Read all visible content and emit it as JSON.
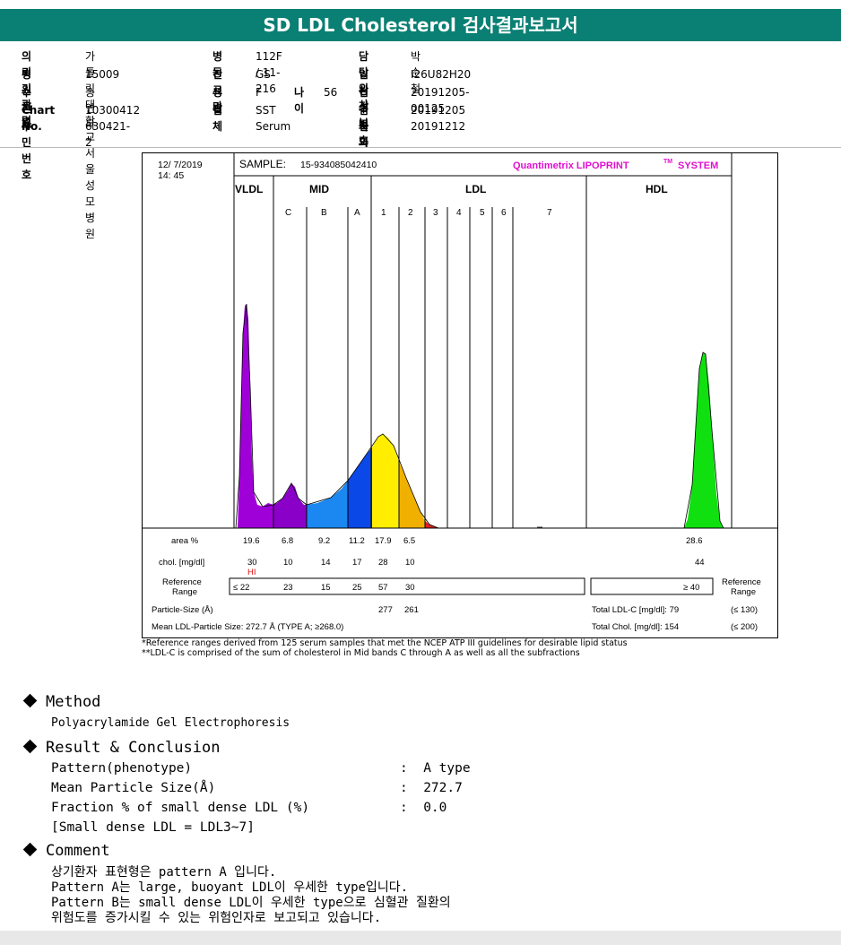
{
  "title": "SD LDL Cholesterol 검사결과보고서",
  "info": {
    "req_label": "의뢰기관명",
    "req_value": "가톨릭대학교서울성모병원",
    "ward_label": "병동",
    "ward_value": "112F / 11-216",
    "doctor_label": "담당의사",
    "doctor_value": "박순철",
    "hosp_label": "병원코드",
    "hosp_value": "15009",
    "dept_label": "진료과",
    "dept_value": "GS",
    "clin_label": "임상정보",
    "clin_value": "I26U82H20",
    "patient_label": "수진자",
    "patient_value": "송연옥",
    "sex_label": "성별",
    "sex_value": "F",
    "age_label": "나이",
    "age_value": "56",
    "recv_label": "접수번호",
    "recv_value": "20191205-00125",
    "chart_label": "Chart No.",
    "chart_value": "10300412",
    "specimen_label": "검체",
    "specimen_value": "SST Serum",
    "reqdate_label": "검사의뢰",
    "reqdate_value": "20191205",
    "id_label": "주민번호",
    "id_value": "630421-2",
    "report_label": "결과보고",
    "report_value": "20191212"
  },
  "chart_header": {
    "date": "12/ 7/2019",
    "time": "14: 45",
    "sample_label": "SAMPLE:",
    "sample_value": "15-934085042410",
    "brand": "Quantimetrix LIPOPRINT",
    "brand_tm": "TM",
    "brand_suffix": "SYSTEM"
  },
  "chart_data": {
    "type": "area",
    "zones": [
      "VLDL",
      "MID",
      "LDL",
      "HDL"
    ],
    "mid_bands": [
      "C",
      "B",
      "A"
    ],
    "ldl_bands": [
      "1",
      "2",
      "3",
      "4",
      "5",
      "6",
      "7"
    ],
    "rows": {
      "area_label": "area %",
      "area_values": [
        "19.6",
        "6.8",
        "9.2",
        "11.2",
        "17.9",
        "6.5"
      ],
      "area_hdl": "28.6",
      "chol_label": "chol. [mg/dl]",
      "chol_values": [
        "30",
        "10",
        "14",
        "17",
        "28",
        "10"
      ],
      "chol_hdl": "44",
      "hi_flag": "HI",
      "ref_label_1": "Reference",
      "ref_label_2": "Range",
      "ref_values": [
        "≤  22",
        "23",
        "15",
        "25",
        "57",
        "30"
      ],
      "ref_hdl": "≥ 40",
      "ref_right_1": "Reference",
      "ref_right_2": "Range",
      "particle_label": "Particle-Size (Å)",
      "particle_values": [
        "277",
        "261"
      ],
      "total_ldl_label": "Total LDL-C [mg/dl]: 79",
      "total_ldl_ref": "(≤ 130)",
      "mean_label": "Mean LDL-Particle Size:  272.7 Å  (TYPE A; ≥268.0)",
      "total_chol_label": "Total Chol. [mg/dl]:  154",
      "total_chol_ref": "(≤ 200)"
    },
    "colors": {
      "vldl": "#a000d8",
      "c": "#8a00c8",
      "b": "#1a88f0",
      "a": "#0a48e8",
      "l1": "#ffee00",
      "l2": "#f0b000",
      "l3": "#e02020",
      "hdl": "#10e010"
    }
  },
  "notes": {
    "n1": "*Reference ranges derived from 125 serum samples that met the NCEP ATP III guidelines for desirable lipid status",
    "n2": "**LDL-C is comprised of the sum of cholesterol in Mid bands C through A as well as all the subfractions"
  },
  "method": {
    "heading": "Method",
    "text": "Polyacrylamide Gel Electrophoresis"
  },
  "result": {
    "heading": "Result & Conclusion",
    "l1": "Pattern(phenotype)",
    "v1": ":  A type",
    "l2": "Mean Particle Size(Å)",
    "v2": ":  272.7",
    "l3": "Fraction % of small dense LDL (%)",
    "v3": ":  0.0",
    "l4": "[Small dense LDL = LDL3~7]"
  },
  "comment": {
    "heading": "Comment",
    "c1": "상기환자 표현형은 pattern A 입니다.",
    "c2": "Pattern A는 large, buoyant LDL이 우세한 type입니다.",
    "c3": "Pattern B는 small dense LDL이 우세한 type으로 심혈관 질환의",
    "c4": "위험도를 증가시킬 수 있는 위험인자로 보고되고 있습니다."
  }
}
